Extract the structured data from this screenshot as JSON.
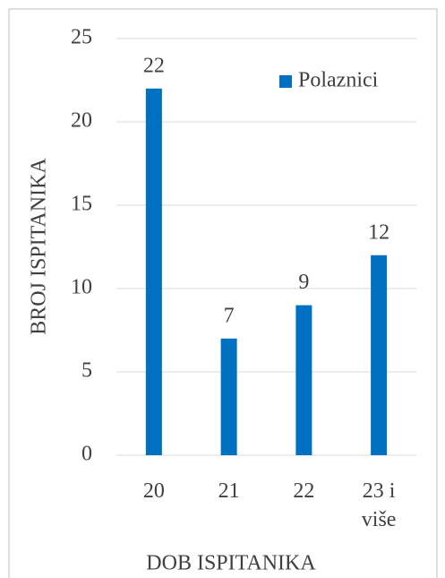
{
  "chart_data": {
    "type": "bar",
    "y_label": "BROJ ISPITANIKA",
    "x_label": "DOB ISPITANIKA",
    "categories": [
      "20",
      "21",
      "22",
      "23 i više"
    ],
    "series": [
      {
        "name": "Polaznici",
        "color": "#0070c0",
        "values": [
          22,
          7,
          9,
          12
        ]
      }
    ],
    "ylim": [
      0,
      25
    ],
    "yticks": [
      0,
      5,
      10,
      15,
      20,
      25
    ],
    "grid": true,
    "legend": "top-right"
  }
}
